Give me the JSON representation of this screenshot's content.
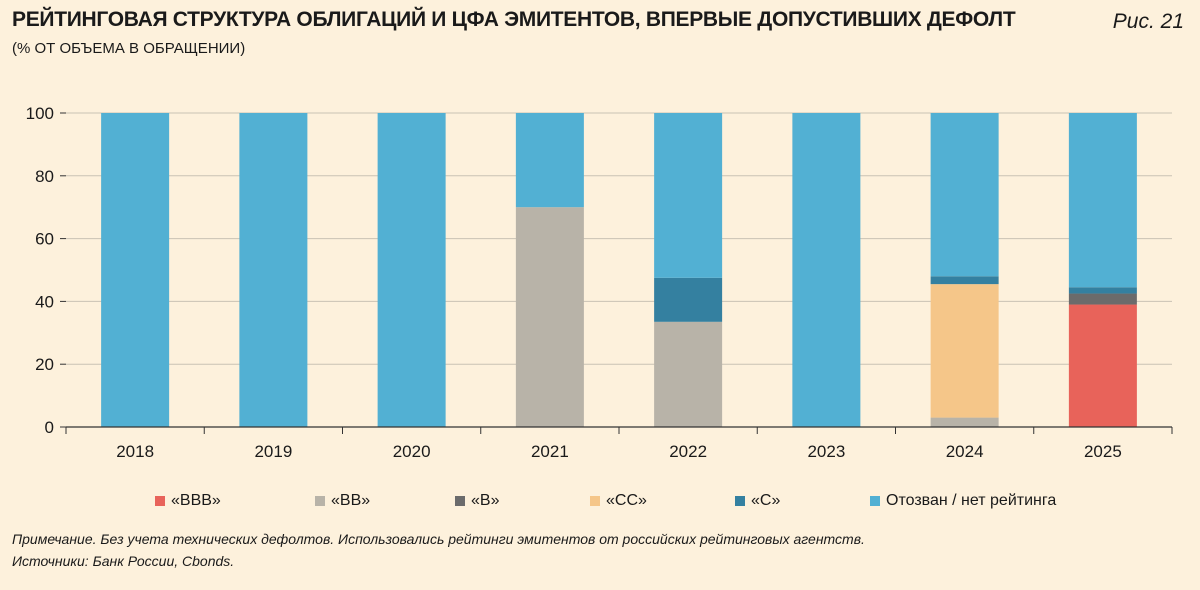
{
  "header": {
    "title": "РЕЙТИНГОВАЯ СТРУКТУРА ОБЛИГАЦИЙ И ЦФА ЭМИТЕНТОВ, ВПЕРВЫЕ ДОПУСТИВШИХ ДЕФОЛТ",
    "subtitle": "(% ОТ ОБЪЕМА В ОБРАЩЕНИИ)",
    "figure_label": "Рис. 21"
  },
  "footer": {
    "note": "Примечание. Без учета технических дефолтов. Использовались рейтинги эмитентов от российских рейтинговых агентств.",
    "sources": "Источники: Банк России, Cbonds."
  },
  "chart_data": {
    "type": "bar",
    "stacked": true,
    "title": "РЕЙТИНГОВАЯ СТРУКТУРА ОБЛИГАЦИЙ И ЦФА ЭМИТЕНТОВ, ВПЕРВЫЕ ДОПУСТИВШИХ ДЕФОЛТ",
    "ylabel": "% от объема в обращении",
    "xlabel": "",
    "ylim": [
      0,
      100
    ],
    "yticks": [
      0,
      20,
      40,
      60,
      80,
      100
    ],
    "grid": true,
    "legend_position": "bottom",
    "categories": [
      "2018",
      "2019",
      "2020",
      "2021",
      "2022",
      "2023",
      "2024",
      "2025"
    ],
    "series": [
      {
        "name": "«BBB»",
        "color": "#e8635a",
        "values": [
          0,
          0,
          0,
          0,
          0,
          0,
          0,
          39
        ]
      },
      {
        "name": "«BB»",
        "color": "#b8b3a8",
        "values": [
          0,
          0,
          0,
          70,
          33.5,
          0,
          3,
          0
        ]
      },
      {
        "name": "«B»",
        "color": "#6b6b6b",
        "values": [
          0,
          0,
          0,
          0,
          0,
          0,
          0,
          3.5
        ]
      },
      {
        "name": "«CC»",
        "color": "#f5c689",
        "values": [
          0,
          0,
          0,
          0,
          0,
          0,
          42.5,
          0
        ]
      },
      {
        "name": "«C»",
        "color": "#3480a0",
        "values": [
          0,
          0,
          0,
          0,
          14,
          0,
          2.5,
          2
        ]
      },
      {
        "name": "Отозван / нет рейтинга",
        "color": "#52b0d3",
        "values": [
          100,
          100,
          100,
          30,
          52.5,
          100,
          52,
          55.5
        ]
      }
    ]
  }
}
